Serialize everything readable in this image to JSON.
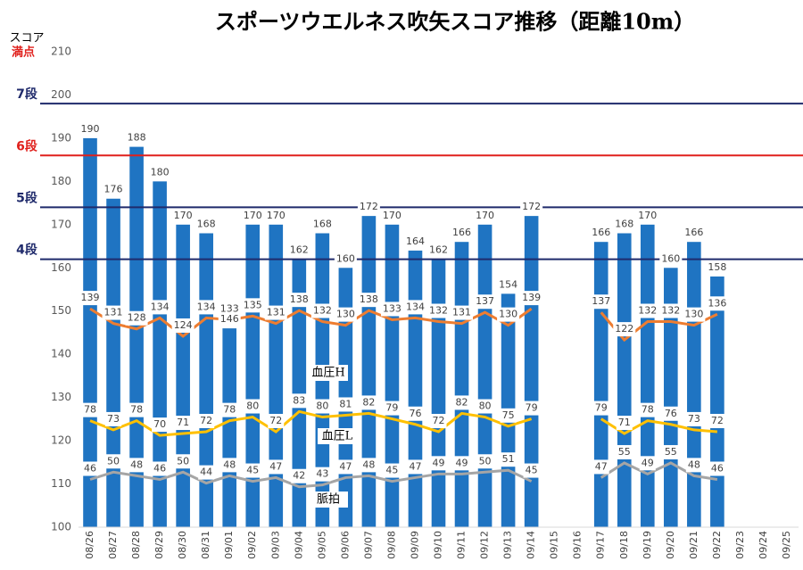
{
  "chart_data": {
    "type": "bar",
    "title": "スポーツウエルネス吹矢スコア推移（距離10m）",
    "y_label": "スコア",
    "y_label_sub": "満点",
    "categories": [
      "08/26",
      "08/27",
      "08/28",
      "08/29",
      "08/30",
      "08/31",
      "09/01",
      "09/02",
      "09/03",
      "09/04",
      "09/05",
      "09/06",
      "09/07",
      "09/08",
      "09/09",
      "09/10",
      "09/11",
      "09/12",
      "09/13",
      "09/14",
      "09/15",
      "09/16",
      "09/17",
      "09/18",
      "09/19",
      "09/20",
      "09/21",
      "09/22",
      "09/23",
      "09/24",
      "09/25"
    ],
    "values": [
      190,
      176,
      188,
      180,
      170,
      168,
      146,
      170,
      170,
      162,
      168,
      160,
      172,
      170,
      164,
      162,
      166,
      170,
      154,
      172,
      null,
      null,
      166,
      168,
      170,
      160,
      166,
      158,
      null,
      null,
      null
    ],
    "color": "#1f74c2",
    "ylim": [
      100,
      210
    ],
    "yticks": [
      100,
      110,
      120,
      130,
      140,
      150,
      160,
      170,
      180,
      190,
      200,
      210
    ],
    "y2lim": [
      20,
      279
    ],
    "series": [
      {
        "name": "血圧H",
        "color": "#ed7d31",
        "axis": "y2",
        "values": [
          139,
          131,
          128,
          134,
          124,
          134,
          133,
          135,
          131,
          138,
          132,
          130,
          138,
          133,
          134,
          132,
          131,
          137,
          130,
          139,
          null,
          null,
          137,
          122,
          132,
          132,
          130,
          136,
          null,
          null,
          null
        ]
      },
      {
        "name": "血圧L",
        "color": "#ffc000",
        "axis": "y2",
        "values": [
          78,
          73,
          78,
          70,
          71,
          72,
          78,
          80,
          72,
          83,
          80,
          81,
          82,
          79,
          76,
          72,
          82,
          80,
          75,
          79,
          null,
          null,
          79,
          71,
          78,
          76,
          73,
          72,
          null,
          null,
          null
        ]
      },
      {
        "name": "脈拍",
        "color": "#a5a5a5",
        "axis": "y2",
        "values": [
          46,
          50,
          48,
          46,
          50,
          44,
          48,
          45,
          47,
          42,
          43,
          47,
          48,
          45,
          47,
          49,
          49,
          50,
          51,
          45,
          null,
          null,
          47,
          55,
          49,
          55,
          48,
          46,
          null,
          null,
          null
        ]
      }
    ],
    "reference_lines": [
      {
        "label": "7段",
        "value": 198,
        "color": "#1f2a6b"
      },
      {
        "label": "6段",
        "value": 186,
        "color": "#e0201c"
      },
      {
        "label": "5段",
        "value": 174,
        "color": "#1f2a6b"
      },
      {
        "label": "4段",
        "value": 162,
        "color": "#1f2a6b"
      }
    ]
  }
}
